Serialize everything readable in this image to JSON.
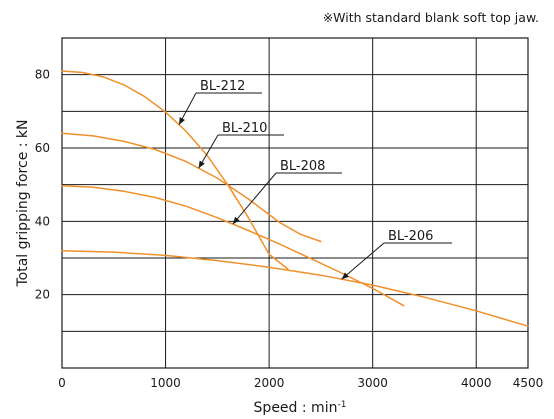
{
  "note": "※With standard blank soft top jaw.",
  "chart_data": {
    "type": "line",
    "title": "",
    "xlabel": "Speed : min",
    "xlabel_sup": "-1",
    "ylabel": "Total gripping force : kN",
    "xlim": [
      0,
      4500
    ],
    "ylim": [
      0,
      90
    ],
    "xticks": [
      "0",
      "1000",
      "2000",
      "3000",
      "4000",
      "4500"
    ],
    "yticks": [
      "20",
      "40",
      "60",
      "80"
    ],
    "grid": true,
    "series_color": "#f0902a",
    "series": [
      {
        "name": "BL-212",
        "x": [
          0,
          200,
          400,
          600,
          800,
          1000,
          1200,
          1400,
          1600,
          1800,
          2000,
          2180
        ],
        "y": [
          81,
          80.6,
          79.4,
          77.2,
          74,
          69.8,
          64.5,
          58,
          50,
          41,
          31,
          27
        ]
      },
      {
        "name": "BL-210",
        "x": [
          0,
          300,
          600,
          900,
          1200,
          1500,
          1800,
          2100,
          2300,
          2500
        ],
        "y": [
          64,
          63.3,
          61.8,
          59.6,
          56.3,
          51.8,
          46.1,
          39.7,
          36.5,
          34.5
        ]
      },
      {
        "name": "BL-208",
        "x": [
          0,
          300,
          600,
          900,
          1200,
          1500,
          1800,
          2100,
          2400,
          2700,
          3000,
          3300
        ],
        "y": [
          49.7,
          49.3,
          48.2,
          46.5,
          44.1,
          41,
          37.5,
          33.8,
          29.9,
          25.9,
          21.7,
          17
        ]
      },
      {
        "name": "BL-206",
        "x": [
          0,
          500,
          1000,
          1500,
          2000,
          2500,
          3000,
          3500,
          4000,
          4500
        ],
        "y": [
          32,
          31.6,
          30.7,
          29.3,
          27.5,
          25.3,
          22.6,
          19.3,
          15.6,
          11.4
        ]
      }
    ]
  }
}
